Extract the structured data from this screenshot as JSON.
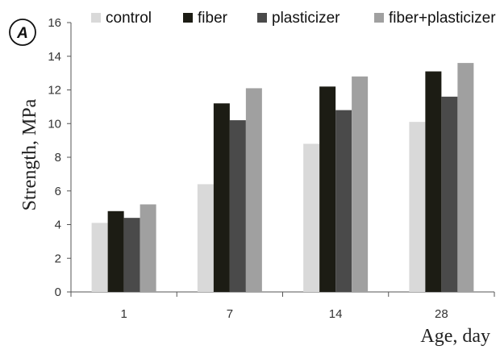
{
  "panel_label": "A",
  "chart_data": {
    "type": "bar",
    "categories": [
      "1",
      "7",
      "14",
      "28"
    ],
    "series": [
      {
        "name": "control",
        "values": [
          4.1,
          6.4,
          8.8,
          10.1
        ],
        "color": "#d9d9d9"
      },
      {
        "name": "fiber",
        "values": [
          4.8,
          11.2,
          12.2,
          13.1
        ],
        "color": "#1c1c14"
      },
      {
        "name": "plasticizer",
        "values": [
          4.4,
          10.2,
          10.8,
          11.6
        ],
        "color": "#4a4a4a"
      },
      {
        "name": "fiber+plasticizer",
        "values": [
          5.2,
          12.1,
          12.8,
          13.6
        ],
        "color": "#a0a0a0"
      }
    ],
    "ylabel": "Strength, MPa",
    "xlabel": "Age, day",
    "ylim": [
      0,
      16
    ],
    "yticks": [
      "0",
      "2",
      "4",
      "6",
      "8",
      "10",
      "12",
      "14",
      "16"
    ],
    "grid": false,
    "legend_position": "top"
  }
}
